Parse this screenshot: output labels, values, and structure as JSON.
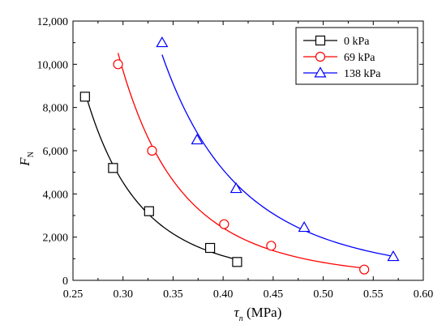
{
  "chart_data": {
    "type": "scatter",
    "xlabel_symbol": "τ",
    "xlabel_subscript": "n",
    "xlabel_unit": " (MPa)",
    "ylabel_symbol": "F",
    "ylabel_subscript": "N",
    "xlim": [
      0.25,
      0.6
    ],
    "ylim": [
      0,
      12000
    ],
    "x_ticks": [
      0.25,
      0.3,
      0.35,
      0.4,
      0.45,
      0.5,
      0.55,
      0.6
    ],
    "x_tick_labels": [
      "0.25",
      "0.30",
      "0.35",
      "0.40",
      "0.45",
      "0.50",
      "0.55",
      "0.60"
    ],
    "y_ticks": [
      0,
      2000,
      4000,
      6000,
      8000,
      10000,
      12000
    ],
    "y_tick_labels": [
      "0",
      "2,000",
      "4,000",
      "6,000",
      "8,000",
      "10,000",
      "12,000"
    ],
    "legend_position": "top-right",
    "series": [
      {
        "name": "0 kPa",
        "marker": "square",
        "color": "#000000",
        "x": [
          0.262,
          0.29,
          0.326,
          0.387,
          0.414
        ],
        "y": [
          8500,
          5200,
          3200,
          1500,
          850
        ]
      },
      {
        "name": "69 kPa",
        "marker": "circle",
        "color": "#ff0000",
        "x": [
          0.295,
          0.329,
          0.401,
          0.448,
          0.541
        ],
        "y": [
          10000,
          6000,
          2600,
          1600,
          500
        ]
      },
      {
        "name": "138 kPa",
        "marker": "triangle",
        "color": "#0000ff",
        "x": [
          0.339,
          0.374,
          0.413,
          0.481,
          0.57
        ],
        "y": [
          11000,
          6500,
          4250,
          2450,
          1100
        ]
      }
    ]
  }
}
